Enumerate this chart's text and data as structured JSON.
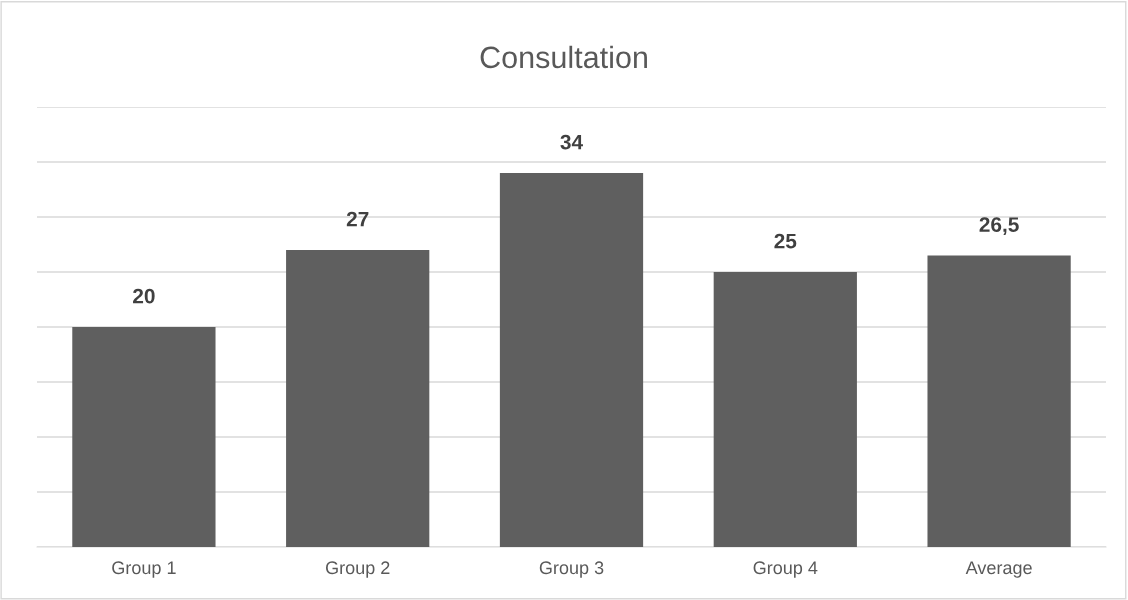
{
  "chart_data": {
    "type": "bar",
    "title": "Consultation",
    "categories": [
      "Group 1",
      "Group 2",
      "Group 3",
      "Group 4",
      "Average"
    ],
    "values": [
      20,
      27,
      34,
      25,
      26.5
    ],
    "value_labels": [
      "20",
      "27",
      "34",
      "25",
      "26,5"
    ],
    "color": "#5f5f5f",
    "ylim": [
      0,
      40
    ],
    "yticks": [
      {
        "value": 0,
        "label": null
      },
      {
        "value": 5,
        "label": null
      },
      {
        "value": 10,
        "label": null
      },
      {
        "value": 15,
        "label": null
      },
      {
        "value": 20,
        "label": null
      },
      {
        "value": 25,
        "label": null
      },
      {
        "value": 30,
        "label": null
      },
      {
        "value": 35,
        "label": null
      },
      {
        "value": 40,
        "label": null
      }
    ],
    "grid": "y",
    "tick_labels": "x",
    "legend": false
  }
}
